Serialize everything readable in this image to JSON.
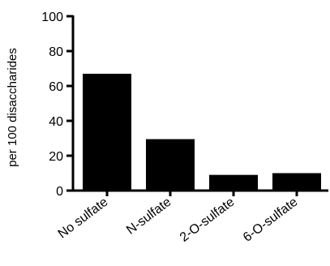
{
  "chart_data": {
    "type": "bar",
    "title": "",
    "xlabel": "",
    "ylabel": "per 100 disaccharides",
    "categories": [
      "No sulfate",
      "N-sulfate",
      "2-O-sulfate",
      "6-O-sulfate"
    ],
    "values": [
      67,
      29.5,
      9,
      10
    ],
    "ylim": [
      0,
      100
    ],
    "yticks": [
      0,
      20,
      40,
      60,
      80,
      100
    ],
    "yticks_text": [
      "0",
      "20",
      "40",
      "60",
      "80",
      "100"
    ],
    "bar_color": "#000000",
    "grid": false,
    "legend": "none"
  }
}
